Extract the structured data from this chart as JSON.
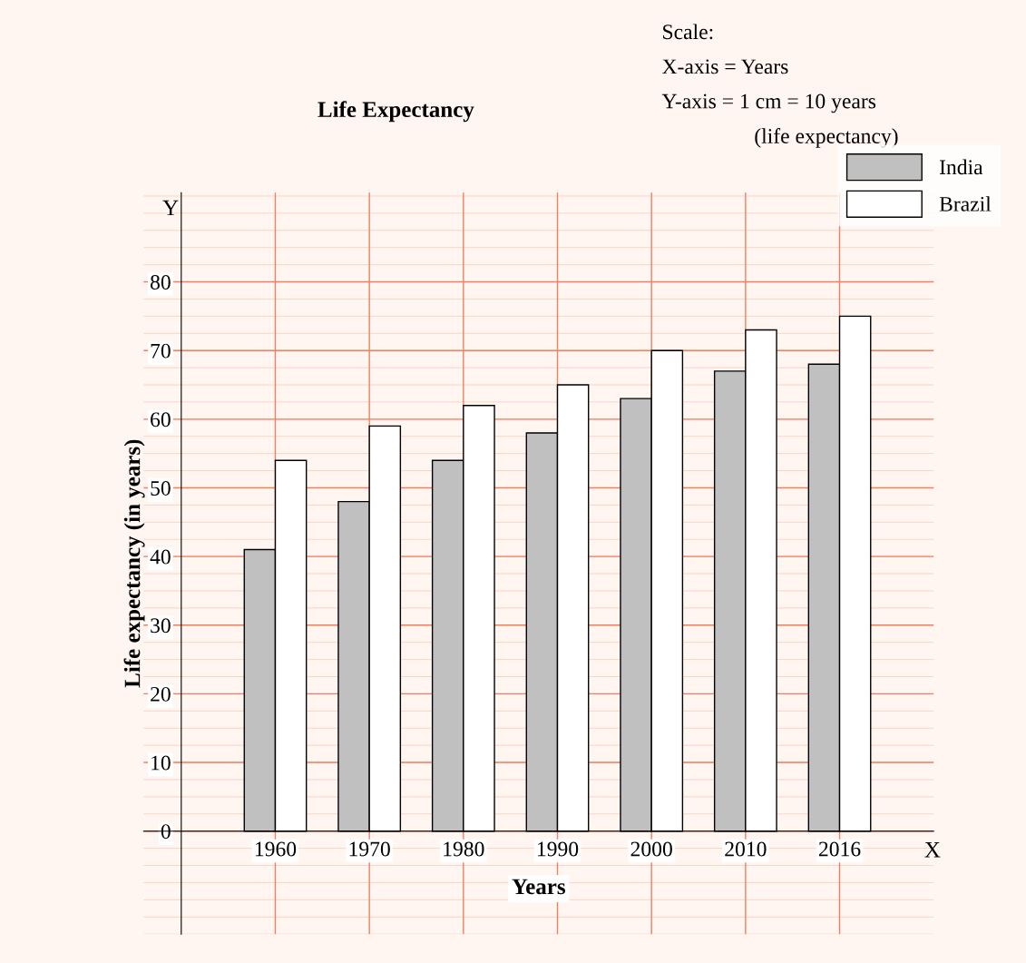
{
  "chart_data": {
    "type": "bar",
    "title": "Life Expectancy",
    "xlabel": "Years",
    "ylabel": "Life expectancy (in years)",
    "categories": [
      "1960",
      "1970",
      "1980",
      "1990",
      "2000",
      "2010",
      "2016"
    ],
    "series": [
      {
        "name": "India",
        "color": "#c0c0c0",
        "values": [
          41,
          48,
          54,
          58,
          63,
          67,
          68
        ]
      },
      {
        "name": "Brazil",
        "color": "#ffffff",
        "values": [
          54,
          59,
          62,
          65,
          70,
          73,
          75
        ]
      }
    ],
    "ylim": [
      -15,
      93
    ],
    "yticks": [
      0,
      10,
      20,
      30,
      40,
      50,
      60,
      70,
      80
    ],
    "annotations": [
      "Scale:",
      "X-axis = Years",
      "Y-axis = 1 cm = 10 years",
      "(life expectancy)",
      "X",
      "Y"
    ],
    "grid": true,
    "legend": "top right"
  }
}
